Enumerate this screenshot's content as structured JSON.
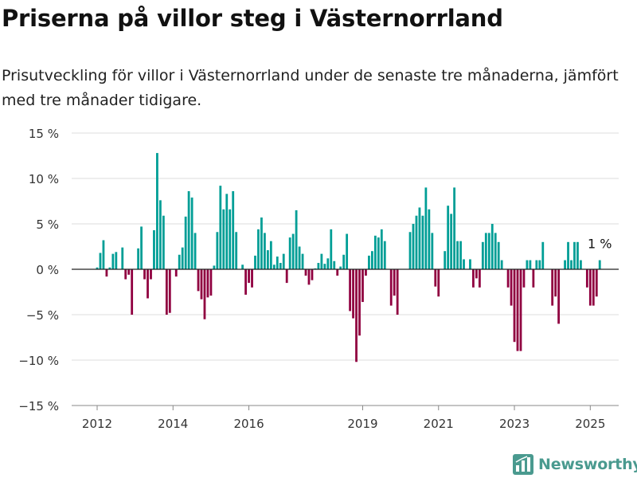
{
  "title": "Priserna på villor steg i Västernorrland",
  "subtitle": "Prisutveckling för villor i Västernorrland under de senaste tre månaderna, jämfört med tre månader tidigare.",
  "brand": {
    "name": "Newsworthy",
    "logo_icon": "bar-chart-logo-icon"
  },
  "colors": {
    "positive": "#009e96",
    "negative": "#900040",
    "grid": "#dddddd",
    "baseline": "#222222"
  },
  "chart_data": {
    "type": "bar",
    "ylim": [
      -15,
      15
    ],
    "y_ticks": [
      15,
      10,
      5,
      0,
      -5,
      -10,
      -15
    ],
    "y_tick_labels": [
      "15 %",
      "10 %",
      "5 %",
      "0 %",
      "−5 %",
      "−10 %",
      "−15 %"
    ],
    "x_tick_labels": [
      {
        "label": "2012",
        "month": "2012-01"
      },
      {
        "label": "2014",
        "month": "2014-01"
      },
      {
        "label": "2016",
        "month": "2016-01"
      },
      {
        "label": "2019",
        "month": "2019-01"
      },
      {
        "label": "2021",
        "month": "2021-01"
      },
      {
        "label": "2023",
        "month": "2023-01"
      },
      {
        "label": "2025",
        "month": "2025-01"
      }
    ],
    "start_month": "2012-01",
    "values": [
      0.2,
      1.8,
      3.2,
      -0.8,
      0.2,
      1.7,
      1.9,
      0,
      2.4,
      -1.1,
      -0.6,
      -5,
      0,
      2.3,
      4.7,
      -1.1,
      -3.2,
      -1.1,
      4.3,
      12.8,
      7.6,
      5.9,
      -5,
      -4.8,
      0,
      -0.8,
      1.6,
      2.4,
      5.8,
      8.6,
      7.9,
      4,
      -2.4,
      -3.3,
      -5.5,
      -3.1,
      -2.9,
      0.4,
      4.1,
      9.2,
      6.6,
      8.3,
      6.6,
      8.6,
      4.1,
      0,
      0.5,
      -2.8,
      -1.5,
      -2,
      1.5,
      4.4,
      5.7,
      4,
      2.1,
      3.1,
      0.5,
      1.4,
      0.7,
      1.7,
      -1.5,
      3.5,
      3.9,
      6.5,
      2.5,
      1.7,
      -0.7,
      -1.7,
      -1.2,
      0.1,
      0.7,
      1.7,
      0.6,
      1.2,
      4.4,
      0.9,
      -0.7,
      0.3,
      1.6,
      3.9,
      -4.6,
      -5.4,
      -10.2,
      -7.3,
      -3.6,
      -0.7,
      1.5,
      2,
      3.7,
      3.5,
      4.4,
      3.1,
      0,
      -4,
      -2.9,
      -5,
      0,
      0,
      0,
      4.1,
      5,
      5.9,
      6.8,
      5.9,
      9,
      6.6,
      4,
      -1.9,
      -3,
      0,
      2,
      7,
      6.1,
      9,
      3.1,
      3.1,
      1.1,
      0,
      1.1,
      -2,
      -1,
      -2,
      3,
      4,
      4,
      5,
      4,
      3,
      1,
      0,
      -2,
      -4,
      -8,
      -9,
      -9,
      -2,
      1,
      1,
      -2,
      1,
      1,
      3,
      0,
      0,
      -4,
      -3,
      -6,
      0,
      1,
      3,
      1,
      3,
      3,
      1,
      0,
      -2,
      -4,
      -4,
      -3,
      1
    ],
    "annotation": {
      "label": "1 %",
      "month": "2025-04"
    }
  }
}
